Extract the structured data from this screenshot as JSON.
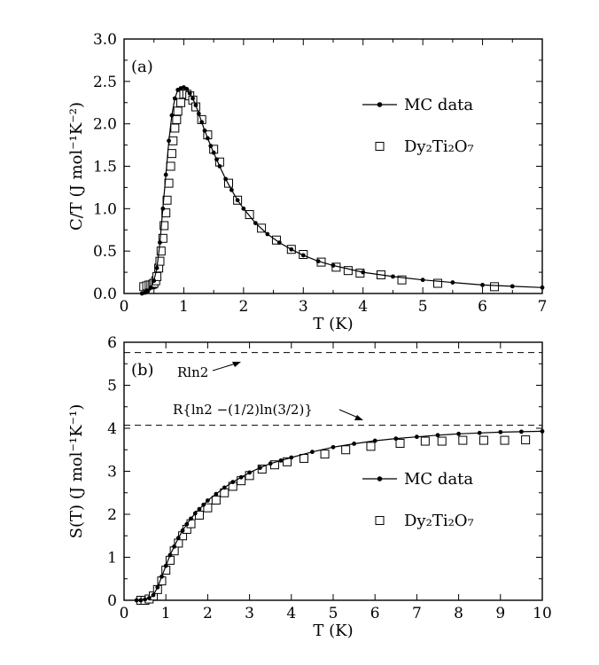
{
  "chart_data": [
    {
      "type": "scatter",
      "panel_label": "(a)",
      "xlabel": "T (K)",
      "ylabel": "C/T (J mol⁻¹K⁻²)",
      "xlim": [
        0,
        7
      ],
      "ylim": [
        0,
        3.0
      ],
      "xticks": [
        "0",
        "1",
        "2",
        "3",
        "4",
        "5",
        "6",
        "7"
      ],
      "yticks": [
        "0.0",
        "0.5",
        "1.0",
        "1.5",
        "2.0",
        "2.5",
        "3.0"
      ],
      "legend_position": "right",
      "series": [
        {
          "name": "MC data",
          "style": "line with filled circles",
          "x": [
            0.3,
            0.35,
            0.4,
            0.45,
            0.5,
            0.55,
            0.6,
            0.65,
            0.7,
            0.75,
            0.8,
            0.85,
            0.9,
            0.95,
            1.0,
            1.05,
            1.1,
            1.15,
            1.2,
            1.25,
            1.3,
            1.35,
            1.4,
            1.45,
            1.5,
            1.55,
            1.6,
            1.7,
            1.8,
            1.9,
            2.0,
            2.2,
            2.4,
            2.6,
            2.8,
            3.0,
            3.25,
            3.5,
            4.0,
            4.5,
            5.0,
            5.5,
            6.0,
            6.5,
            7.0
          ],
          "y": [
            0.0,
            0.01,
            0.03,
            0.07,
            0.15,
            0.3,
            0.6,
            1.0,
            1.4,
            1.8,
            2.1,
            2.3,
            2.4,
            2.42,
            2.43,
            2.41,
            2.36,
            2.3,
            2.22,
            2.12,
            2.02,
            1.92,
            1.83,
            1.74,
            1.66,
            1.58,
            1.5,
            1.35,
            1.22,
            1.1,
            1.0,
            0.83,
            0.7,
            0.6,
            0.52,
            0.45,
            0.38,
            0.33,
            0.25,
            0.2,
            0.16,
            0.13,
            0.1,
            0.085,
            0.07
          ]
        },
        {
          "name": "Dy₂Ti₂O₇",
          "style": "open squares",
          "x": [
            0.33,
            0.38,
            0.42,
            0.45,
            0.48,
            0.5,
            0.53,
            0.55,
            0.58,
            0.6,
            0.62,
            0.65,
            0.67,
            0.7,
            0.72,
            0.75,
            0.78,
            0.8,
            0.82,
            0.85,
            0.88,
            0.9,
            0.95,
            1.0,
            1.05,
            1.1,
            1.15,
            1.2,
            1.3,
            1.4,
            1.5,
            1.6,
            1.75,
            1.9,
            2.1,
            2.3,
            2.55,
            2.8,
            3.0,
            3.3,
            3.55,
            3.75,
            3.95,
            4.3,
            4.65,
            5.25,
            6.2
          ],
          "y": [
            0.08,
            0.09,
            0.1,
            0.1,
            0.11,
            0.12,
            0.15,
            0.2,
            0.3,
            0.38,
            0.5,
            0.65,
            0.8,
            0.95,
            1.1,
            1.3,
            1.5,
            1.65,
            1.8,
            1.95,
            2.05,
            2.15,
            2.25,
            2.35,
            2.35,
            2.33,
            2.28,
            2.2,
            2.05,
            1.87,
            1.7,
            1.55,
            1.3,
            1.1,
            0.93,
            0.77,
            0.63,
            0.52,
            0.46,
            0.37,
            0.31,
            0.27,
            0.24,
            0.22,
            0.16,
            0.12,
            0.08
          ]
        }
      ]
    },
    {
      "type": "scatter",
      "panel_label": "(b)",
      "xlabel": "T (K)",
      "ylabel": "S(T) (J mol⁻¹K⁻¹)",
      "xlim": [
        0,
        10
      ],
      "ylim": [
        0,
        6
      ],
      "xticks": [
        "0",
        "1",
        "2",
        "3",
        "4",
        "5",
        "6",
        "7",
        "8",
        "9",
        "10"
      ],
      "yticks": [
        "0",
        "1",
        "2",
        "3",
        "4",
        "5",
        "6"
      ],
      "legend_position": "right",
      "reference_lines": [
        {
          "y": 5.76,
          "label": "Rln2"
        },
        {
          "y": 4.07,
          "label": "R{ln2 −(1/2)ln(3/2)}"
        }
      ],
      "series": [
        {
          "name": "MC data",
          "style": "line with filled circles",
          "x": [
            0.3,
            0.4,
            0.5,
            0.6,
            0.7,
            0.8,
            0.9,
            1.0,
            1.1,
            1.2,
            1.3,
            1.4,
            1.5,
            1.6,
            1.7,
            1.8,
            1.9,
            2.0,
            2.2,
            2.4,
            2.6,
            2.8,
            3.0,
            3.25,
            3.5,
            3.75,
            4.0,
            4.5,
            5.0,
            5.5,
            6.0,
            6.5,
            7.0,
            7.5,
            8.0,
            8.5,
            9.0,
            9.5,
            10.0
          ],
          "y": [
            0.0,
            0.0,
            0.02,
            0.05,
            0.12,
            0.3,
            0.55,
            0.8,
            1.05,
            1.25,
            1.45,
            1.62,
            1.77,
            1.9,
            2.02,
            2.12,
            2.22,
            2.32,
            2.47,
            2.62,
            2.75,
            2.86,
            2.97,
            3.08,
            3.18,
            3.25,
            3.32,
            3.45,
            3.56,
            3.64,
            3.71,
            3.76,
            3.8,
            3.84,
            3.87,
            3.89,
            3.91,
            3.92,
            3.93
          ]
        },
        {
          "name": "Dy₂Ti₂O₇",
          "style": "open squares",
          "x": [
            0.4,
            0.5,
            0.6,
            0.7,
            0.8,
            0.9,
            1.0,
            1.1,
            1.2,
            1.3,
            1.4,
            1.5,
            1.6,
            1.8,
            2.0,
            2.2,
            2.4,
            2.6,
            2.8,
            3.0,
            3.3,
            3.6,
            3.9,
            4.3,
            4.8,
            5.3,
            5.9,
            6.6,
            7.2,
            7.6,
            8.1,
            8.6,
            9.1,
            9.6
          ],
          "y": [
            0.0,
            0.0,
            0.03,
            0.1,
            0.25,
            0.45,
            0.7,
            0.93,
            1.15,
            1.33,
            1.5,
            1.65,
            1.78,
            1.98,
            2.15,
            2.33,
            2.5,
            2.65,
            2.78,
            2.9,
            3.05,
            3.15,
            3.22,
            3.3,
            3.4,
            3.5,
            3.58,
            3.65,
            3.7,
            3.7,
            3.72,
            3.72,
            3.72,
            3.73
          ]
        }
      ]
    }
  ]
}
